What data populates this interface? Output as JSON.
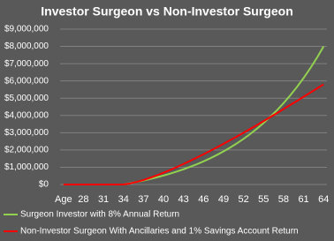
{
  "chart_data": {
    "type": "line",
    "title": "Investor Surgeon vs Non-Investor Surgeon",
    "categories": [
      "Age",
      null,
      null,
      28,
      null,
      null,
      31,
      null,
      null,
      34,
      null,
      null,
      37,
      null,
      null,
      40,
      null,
      null,
      43,
      null,
      null,
      46,
      null,
      null,
      49,
      null,
      null,
      52,
      null,
      null,
      55,
      null,
      null,
      58,
      null,
      null,
      61,
      null,
      null,
      64
    ],
    "series": [
      {
        "name": "Surgeon Investor with 8% Annual Return",
        "color": "#92d050",
        "values": [
          0,
          0,
          0,
          0,
          0,
          0,
          0,
          0,
          0,
          0,
          71000,
          147000,
          229000,
          318000,
          414000,
          518000,
          630000,
          751000,
          882000,
          1023000,
          1175000,
          1340000,
          1518000,
          1710000,
          1917000,
          2141000,
          2383000,
          2644000,
          2927000,
          3231000,
          3560000,
          3916000,
          4300000,
          4714000,
          5162000,
          5645000,
          6167000,
          6731000,
          7340000,
          8000000
        ]
      },
      {
        "name": "Non-Investor Surgeon With Ancillaries and 1% Savings Account Return",
        "color": "#ff0000",
        "values": [
          0,
          0,
          0,
          0,
          0,
          0,
          0,
          0,
          0,
          0,
          60000,
          150000,
          260000,
          390000,
          530000,
          680000,
          840000,
          1010000,
          1190000,
          1370000,
          1560000,
          1750000,
          1950000,
          2150000,
          2360000,
          2570000,
          2780000,
          3000000,
          3220000,
          3440000,
          3670000,
          3900000,
          4130000,
          4370000,
          4610000,
          4840000,
          5080000,
          5320000,
          5560000,
          5800000
        ]
      }
    ],
    "ylim": [
      0,
      9000000
    ],
    "yticks": [
      {
        "value": 0,
        "label": "$0"
      },
      {
        "value": 1000000,
        "label": "$1,000,000"
      },
      {
        "value": 2000000,
        "label": "$2,000,000"
      },
      {
        "value": 3000000,
        "label": "$3,000,000"
      },
      {
        "value": 4000000,
        "label": "$4,000,000"
      },
      {
        "value": 5000000,
        "label": "$5,000,000"
      },
      {
        "value": 6000000,
        "label": "$6,000,000"
      },
      {
        "value": 7000000,
        "label": "$7,000,000"
      },
      {
        "value": 8000000,
        "label": "$8,000,000"
      },
      {
        "value": 9000000,
        "label": "$9,000,000"
      }
    ],
    "grid": true,
    "legend": "bottom"
  }
}
